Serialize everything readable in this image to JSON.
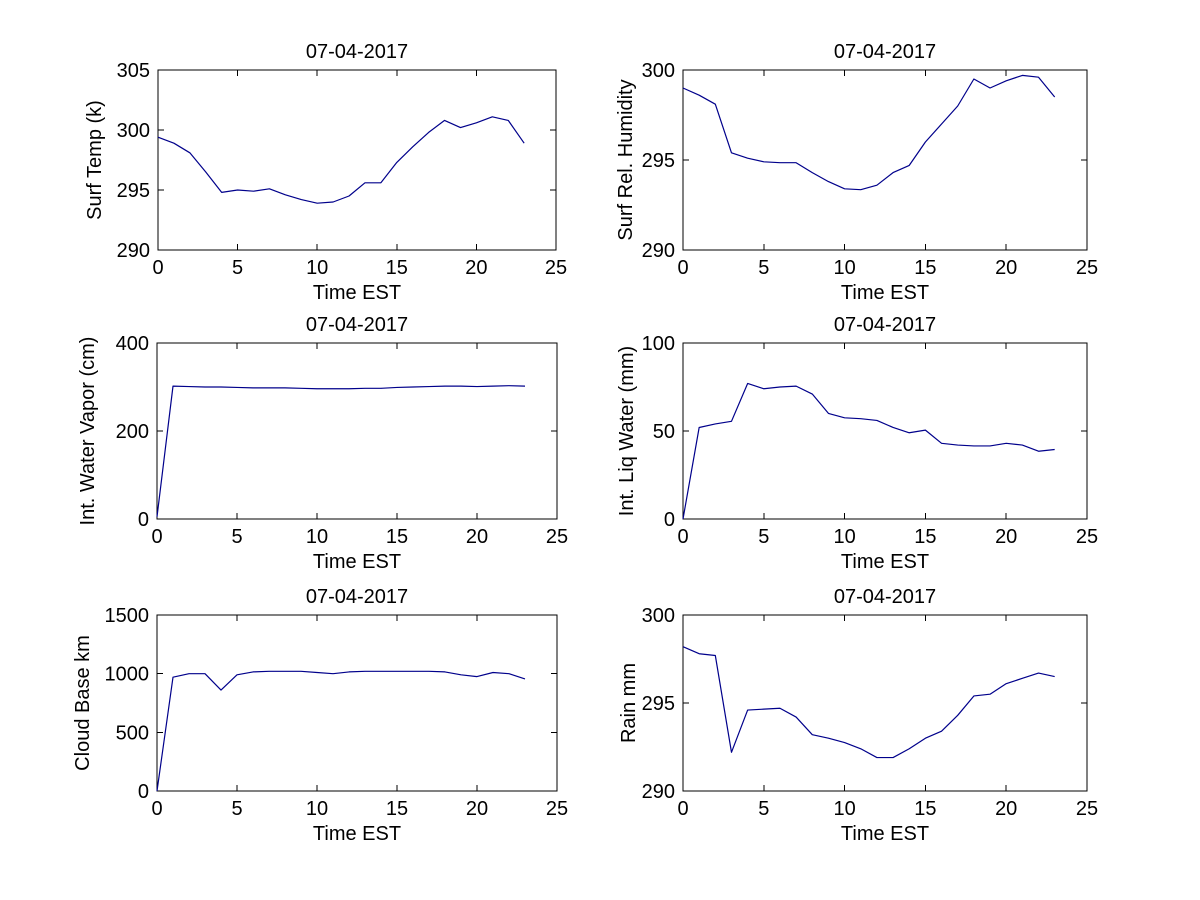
{
  "figure": {
    "background": "#ffffff",
    "line_color": "#00008B",
    "axis_color": "#000000",
    "text_color": "#000000"
  },
  "chart_data": [
    {
      "type": "line",
      "key": "surf-temp",
      "title": "07-04-2017",
      "xlabel": "Time EST",
      "ylabel": "Surf Temp (k)",
      "xlim": [
        0,
        25
      ],
      "ylim": [
        290,
        305
      ],
      "xticks": [
        0,
        5,
        10,
        15,
        20,
        25
      ],
      "yticks": [
        290,
        295,
        300,
        305
      ],
      "grid": false,
      "legend": false,
      "x": [
        0,
        1,
        2,
        3,
        4,
        5,
        6,
        7,
        8,
        9,
        10,
        11,
        12,
        13,
        14,
        15,
        16,
        17,
        18,
        19,
        20,
        21,
        22,
        23
      ],
      "y": [
        299.4,
        298.9,
        298.1,
        296.5,
        294.8,
        295.0,
        294.9,
        295.1,
        294.6,
        294.2,
        293.9,
        294.0,
        294.5,
        295.6,
        295.6,
        297.3,
        298.6,
        299.8,
        300.8,
        300.2,
        300.6,
        301.1,
        300.8,
        298.9
      ]
    },
    {
      "type": "line",
      "key": "surf-rel-humidity",
      "title": "07-04-2017",
      "xlabel": "Time EST",
      "ylabel": "Surf Rel. Humidity",
      "xlim": [
        0,
        25
      ],
      "ylim": [
        290,
        300
      ],
      "xticks": [
        0,
        5,
        10,
        15,
        20,
        25
      ],
      "yticks": [
        290,
        295,
        300
      ],
      "grid": false,
      "legend": false,
      "x": [
        0,
        1,
        2,
        3,
        4,
        5,
        6,
        7,
        8,
        9,
        10,
        11,
        12,
        13,
        14,
        15,
        16,
        17,
        18,
        19,
        20,
        21,
        22,
        23
      ],
      "y": [
        299.0,
        298.6,
        298.1,
        295.4,
        295.1,
        294.9,
        294.85,
        294.85,
        294.3,
        293.8,
        293.4,
        293.35,
        293.6,
        294.3,
        294.7,
        296.0,
        297.0,
        298.0,
        299.5,
        299.0,
        299.4,
        299.7,
        299.6,
        298.5
      ]
    },
    {
      "type": "line",
      "key": "int-water-vapor",
      "title": "07-04-2017",
      "xlabel": "Time EST",
      "ylabel": "Int. Water Vapor (cm)",
      "xlim": [
        0,
        25
      ],
      "ylim": [
        0,
        400
      ],
      "xticks": [
        0,
        5,
        10,
        15,
        20,
        25
      ],
      "yticks": [
        0,
        200,
        400
      ],
      "grid": false,
      "legend": false,
      "x": [
        0,
        1,
        2,
        3,
        4,
        5,
        6,
        7,
        8,
        9,
        10,
        11,
        12,
        13,
        14,
        15,
        16,
        17,
        18,
        19,
        20,
        21,
        22,
        23
      ],
      "y": [
        5,
        302,
        301,
        300,
        300,
        299,
        298,
        298,
        298,
        297,
        296,
        296,
        296,
        297,
        297,
        299,
        300,
        301,
        302,
        302,
        301,
        302,
        303,
        302
      ]
    },
    {
      "type": "line",
      "key": "int-liq-water",
      "title": "07-04-2017",
      "xlabel": "Time EST",
      "ylabel": "Int. Liq Water (mm)",
      "xlim": [
        0,
        25
      ],
      "ylim": [
        0,
        100
      ],
      "xticks": [
        0,
        5,
        10,
        15,
        20,
        25
      ],
      "yticks": [
        0,
        50,
        100
      ],
      "grid": false,
      "legend": false,
      "x": [
        0,
        1,
        2,
        3,
        4,
        5,
        6,
        7,
        8,
        9,
        10,
        11,
        12,
        13,
        14,
        15,
        16,
        17,
        18,
        19,
        20,
        21,
        22,
        23
      ],
      "y": [
        0,
        52,
        54,
        55.5,
        77,
        74,
        75,
        75.5,
        71,
        60,
        57.5,
        57,
        56,
        52,
        49,
        50.5,
        43,
        42,
        41.5,
        41.5,
        43,
        42,
        38.5,
        39.5
      ]
    },
    {
      "type": "line",
      "key": "cloud-base",
      "title": "07-04-2017",
      "xlabel": "Time EST",
      "ylabel": "Cloud Base km",
      "xlim": [
        0,
        25
      ],
      "ylim": [
        0,
        1500
      ],
      "xticks": [
        0,
        5,
        10,
        15,
        20,
        25
      ],
      "yticks": [
        0,
        500,
        1000,
        1500
      ],
      "grid": false,
      "legend": false,
      "x": [
        0,
        1,
        2,
        3,
        4,
        5,
        6,
        7,
        8,
        9,
        10,
        11,
        12,
        13,
        14,
        15,
        16,
        17,
        18,
        19,
        20,
        21,
        22,
        23
      ],
      "y": [
        0,
        970,
        1000,
        1000,
        860,
        990,
        1015,
        1020,
        1020,
        1020,
        1010,
        1000,
        1015,
        1020,
        1020,
        1020,
        1020,
        1020,
        1015,
        990,
        975,
        1010,
        1000,
        955
      ]
    },
    {
      "type": "line",
      "key": "rain",
      "title": "07-04-2017",
      "xlabel": "Time EST",
      "ylabel": "Rain mm",
      "xlim": [
        0,
        25
      ],
      "ylim": [
        290,
        300
      ],
      "xticks": [
        0,
        5,
        10,
        15,
        20,
        25
      ],
      "yticks": [
        290,
        295,
        300
      ],
      "grid": false,
      "legend": false,
      "x": [
        0,
        1,
        2,
        3,
        4,
        5,
        6,
        7,
        8,
        9,
        10,
        11,
        12,
        13,
        14,
        15,
        16,
        17,
        18,
        19,
        20,
        21,
        22,
        23
      ],
      "y": [
        298.2,
        297.8,
        297.7,
        292.2,
        294.6,
        294.65,
        294.7,
        294.2,
        293.2,
        293.0,
        292.75,
        292.4,
        291.9,
        291.9,
        292.4,
        293.0,
        293.4,
        294.3,
        295.4,
        295.5,
        296.1,
        296.4,
        296.7,
        296.5
      ]
    }
  ]
}
